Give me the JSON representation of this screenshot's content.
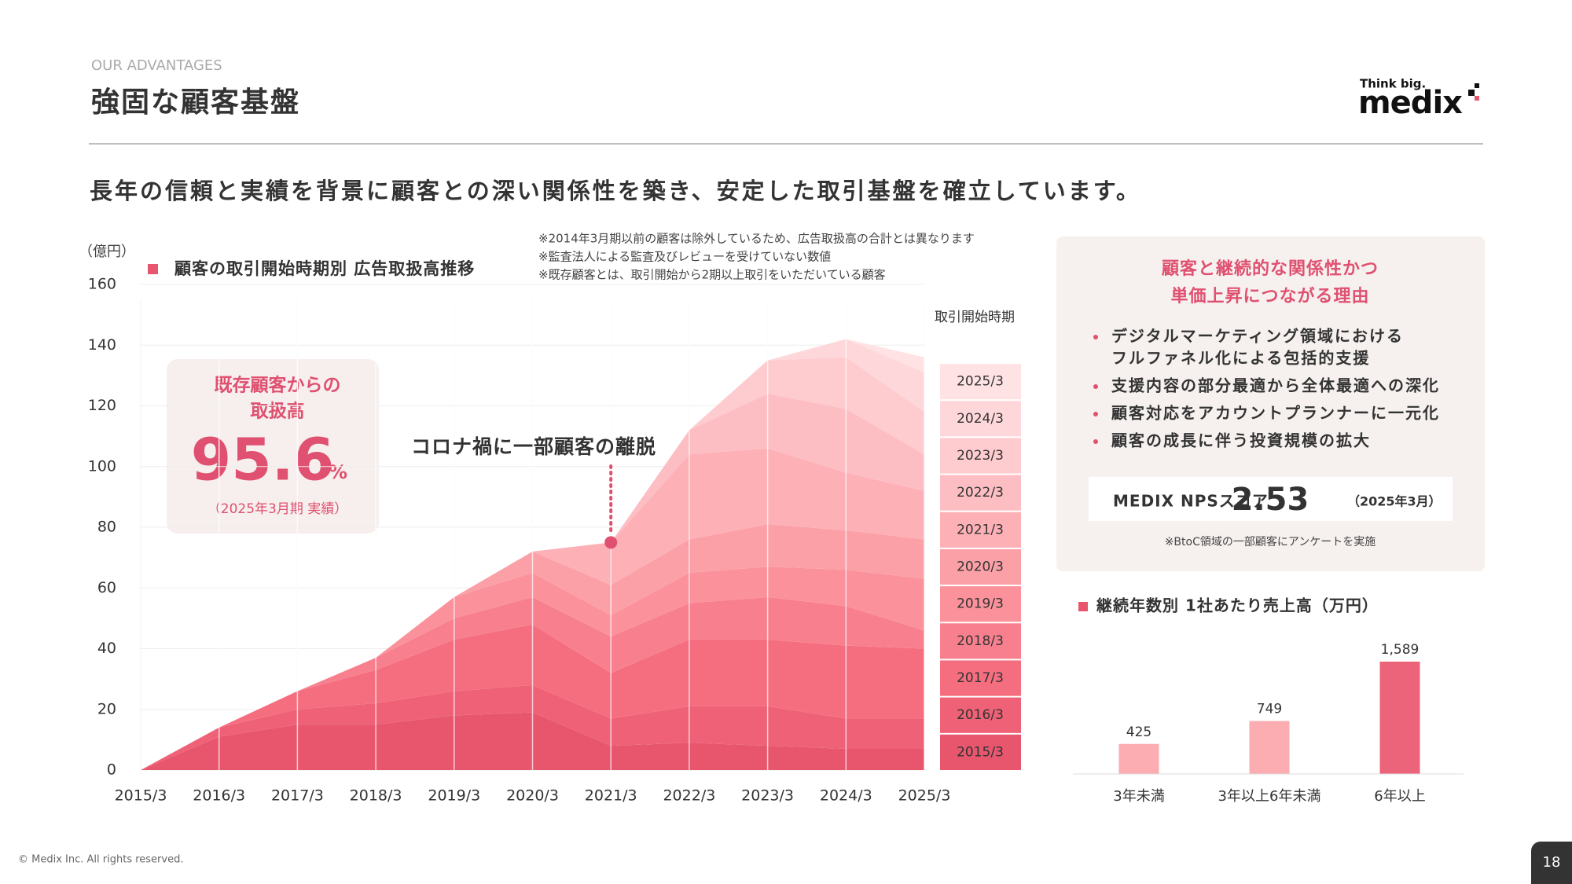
{
  "header": {
    "eyebrow": "OUR ADVANTAGES",
    "title": "強固な顧客基盤",
    "logo_tagline": "Think big.",
    "logo": "medix"
  },
  "headline": "長年の信頼と実績を背景に顧客との深い関係性を築き、安定した取引基盤を確立しています。",
  "chart_data": [
    {
      "type": "area",
      "stacked": true,
      "title": "顧客の取引開始時期別 広告取扱高推移",
      "y_unit": "（億円）",
      "notes": [
        "※2014年3月期以前の顧客は除外しているため、広告取扱高の合計とは異なります",
        "※監査法人による監査及びレビューを受けていない数値",
        "※既存顧客とは、取引開始から2期以上取引をいただいている顧客"
      ],
      "legend_title": "取引開始時期",
      "legend": "right",
      "grid": true,
      "categories": [
        "2015/3",
        "2016/3",
        "2017/3",
        "2018/3",
        "2019/3",
        "2020/3",
        "2021/3",
        "2022/3",
        "2023/3",
        "2024/3",
        "2025/3"
      ],
      "ylim": [
        0,
        160
      ],
      "yticks": [
        0,
        20,
        40,
        60,
        80,
        100,
        120,
        140,
        160
      ],
      "series": [
        {
          "name": "2015/3",
          "color": "#e8566e",
          "values": [
            0,
            11,
            15,
            15,
            18,
            19,
            8,
            9,
            8,
            7,
            7
          ]
        },
        {
          "name": "2016/3",
          "color": "#ee6176",
          "values": [
            0,
            3,
            5,
            7,
            8,
            9,
            9,
            12,
            13,
            10,
            10
          ]
        },
        {
          "name": "2017/3",
          "color": "#f56e80",
          "values": [
            0,
            0,
            6,
            11,
            17,
            20,
            15,
            22,
            22,
            24,
            23
          ]
        },
        {
          "name": "2018/3",
          "color": "#f8808e",
          "values": [
            0,
            0,
            0,
            4,
            7,
            9,
            12,
            12,
            14,
            13,
            6
          ]
        },
        {
          "name": "2019/3",
          "color": "#fb919b",
          "values": [
            0,
            0,
            0,
            0,
            7,
            8,
            7,
            10,
            10,
            12,
            17
          ]
        },
        {
          "name": "2020/3",
          "color": "#fca0a8",
          "values": [
            0,
            0,
            0,
            0,
            0,
            7,
            10,
            11,
            14,
            13,
            13
          ]
        },
        {
          "name": "2021/3",
          "color": "#fdb0b6",
          "values": [
            0,
            0,
            0,
            0,
            0,
            0,
            14,
            28,
            25,
            19,
            16
          ]
        },
        {
          "name": "2022/3",
          "color": "#fdbec3",
          "values": [
            0,
            0,
            0,
            0,
            0,
            0,
            0,
            8,
            18,
            21,
            12
          ]
        },
        {
          "name": "2023/3",
          "color": "#fecbcf",
          "values": [
            0,
            0,
            0,
            0,
            0,
            0,
            0,
            0,
            11,
            17,
            14
          ]
        },
        {
          "name": "2024/3",
          "color": "#fed7da",
          "values": [
            0,
            0,
            0,
            0,
            0,
            0,
            0,
            0,
            0,
            6,
            13
          ]
        },
        {
          "name": "2025/3",
          "color": "#ffe2e4",
          "values": [
            0,
            0,
            0,
            0,
            0,
            0,
            0,
            0,
            0,
            0,
            5
          ]
        }
      ]
    },
    {
      "type": "bar",
      "title": "継続年数別 1社あたり売上高（万円）",
      "categories": [
        "3年未満",
        "3年以上6年未満",
        "6年以上"
      ],
      "values": [
        425,
        749,
        1589
      ],
      "value_labels": [
        "425",
        "749",
        "1,589"
      ],
      "colors": [
        "#fbadb1",
        "#fbadb1",
        "#ec6479"
      ]
    }
  ],
  "callout": {
    "lines": [
      "既存顧客からの",
      "取扱高"
    ],
    "value": 95.6,
    "unit": "%",
    "note": "（2025年3月期 実績）"
  },
  "annotation": "コロナ禍に一部顧客の離脱",
  "panel": {
    "heading": [
      "顧客と継続的な関係性かつ",
      "単価上昇につながる理由"
    ],
    "bullets": [
      [
        "デジタルマーケティング領域における",
        "フルファネル化による包括的支援"
      ],
      [
        "支援内容の部分最適から全体最適への深化"
      ],
      [
        "顧客対応をアカウントプランナーに一元化"
      ],
      [
        "顧客の成長に伴う投資規模の拡大"
      ]
    ],
    "nps": {
      "label": "MEDIX NPSスコア",
      "value": 2.53,
      "period": "（2025年3月）"
    },
    "note": "※BtoC領域の一部顧客にアンケートを実施"
  },
  "footer": {
    "copyright": "© Medix Inc. All rights reserved.",
    "page": 18
  }
}
